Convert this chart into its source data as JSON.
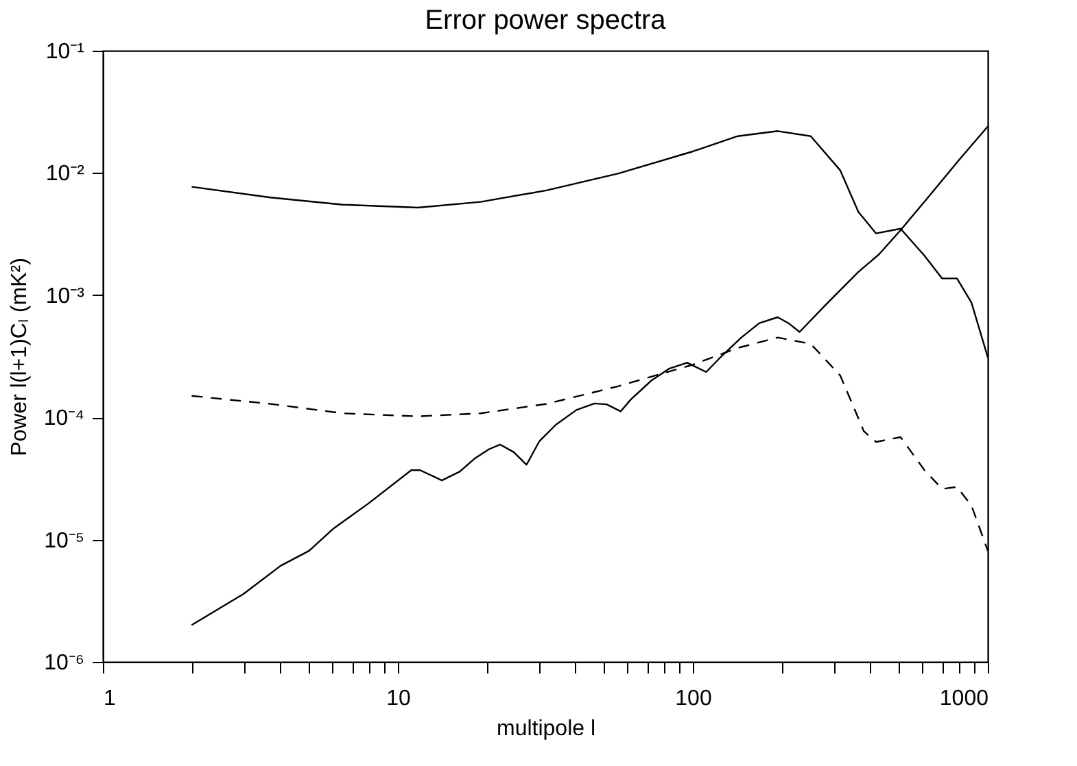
{
  "chart_data": {
    "type": "line",
    "title": "Error power spectra",
    "xlabel": "multipole l",
    "ylabel": "Power l(l+1)Cₗ (mK²)",
    "log": "xy",
    "grid": false,
    "marker": "none",
    "xlim": [
      1,
      1000
    ],
    "ylim": [
      1e-06,
      0.1
    ],
    "xticks": [
      1,
      {
        "value": 2,
        "label": null
      },
      {
        "value": 3,
        "label": null
      },
      {
        "value": 4,
        "label": null
      },
      {
        "value": 5,
        "label": null
      },
      {
        "value": 6,
        "label": null
      },
      {
        "value": 7,
        "label": null
      },
      {
        "value": 8,
        "label": null
      },
      {
        "value": 9,
        "label": null
      },
      10,
      {
        "value": 20,
        "label": null
      },
      {
        "value": 30,
        "label": null
      },
      {
        "value": 40,
        "label": null
      },
      {
        "value": 50,
        "label": null
      },
      {
        "value": 60,
        "label": null
      },
      {
        "value": 70,
        "label": null
      },
      {
        "value": 80,
        "label": null
      },
      {
        "value": 90,
        "label": null
      },
      100,
      {
        "value": 200,
        "label": null
      },
      {
        "value": 300,
        "label": null
      },
      {
        "value": 400,
        "label": null
      },
      {
        "value": 500,
        "label": null
      },
      {
        "value": 600,
        "label": null
      },
      {
        "value": 700,
        "label": null
      },
      {
        "value": 800,
        "label": null
      },
      {
        "value": 900,
        "label": null
      },
      1000
    ],
    "yticks": [
      {
        "value": 1e-06,
        "label": "10⁻⁶"
      },
      {
        "value": 1e-05,
        "label": "10⁻⁵"
      },
      {
        "value": 0.0001,
        "label": "10⁻⁴"
      },
      {
        "value": 0.001,
        "label": "10⁻³"
      },
      {
        "value": 0.01,
        "label": "10⁻²"
      },
      {
        "value": 0.1,
        "label": "10⁻¹"
      }
    ],
    "series": [
      {
        "color": "#000000",
        "line_style": "solid",
        "x": [
          2,
          3.7,
          6.5,
          11.7,
          19.1,
          31.9,
          56,
          100,
          142,
          194,
          251,
          316,
          364,
          418,
          506,
          610,
          700,
          786,
          880,
          1000
        ],
        "values": [
          0.0077,
          0.0063,
          0.0055,
          0.0052,
          0.0058,
          0.0072,
          0.0099,
          0.015,
          0.02,
          0.022,
          0.02,
          0.0105,
          0.0048,
          0.0032,
          0.0035,
          0.0021,
          0.00137,
          0.00137,
          0.00087,
          0.00031
        ]
      },
      {
        "color": "#000000",
        "line_style": "solid",
        "x": [
          2,
          3,
          4,
          5,
          6.07,
          8,
          11.1,
          11.9,
          14.1,
          16.2,
          18.2,
          20.4,
          22.2,
          24.7,
          27.3,
          30.2,
          34.3,
          40.3,
          46.4,
          51,
          56.9,
          61.6,
          72.3,
          83,
          95.7,
          111,
          124,
          146,
          168,
          194,
          211,
          230,
          287,
          364,
          427,
          506,
          640,
          804,
          1000
        ],
        "values": [
          2e-06,
          3.6e-06,
          6.1e-06,
          8.1e-06,
          1.24e-05,
          2e-05,
          3.7e-05,
          3.7e-05,
          3.05e-05,
          3.6e-05,
          4.6e-05,
          5.5e-05,
          6e-05,
          5.2e-05,
          4.1e-05,
          6.4e-05,
          8.7e-05,
          0.000115,
          0.00013,
          0.000128,
          0.000112,
          0.00014,
          0.0002,
          0.00025,
          0.00028,
          0.000235,
          0.00031,
          0.00045,
          0.00059,
          0.00066,
          0.00059,
          0.0005,
          0.00087,
          0.00155,
          0.00215,
          0.0034,
          0.0067,
          0.013,
          0.024
        ]
      },
      {
        "color": "#000000",
        "line_style": "dashed",
        "x": [
          2,
          3.7,
          6.5,
          11.7,
          19.1,
          31.9,
          56,
          100,
          142,
          194,
          251,
          316,
          380,
          418,
          506,
          610,
          700,
          786,
          880,
          1000
        ],
        "values": [
          0.00015,
          0.000129,
          0.000108,
          0.000102,
          0.000108,
          0.000129,
          0.00018,
          0.00027,
          0.00037,
          0.00045,
          0.0004,
          0.00022,
          7.7e-05,
          6.3e-05,
          6.9e-05,
          3.7e-05,
          2.6e-05,
          2.7e-05,
          1.9e-05,
          8.1e-06
        ]
      }
    ]
  }
}
